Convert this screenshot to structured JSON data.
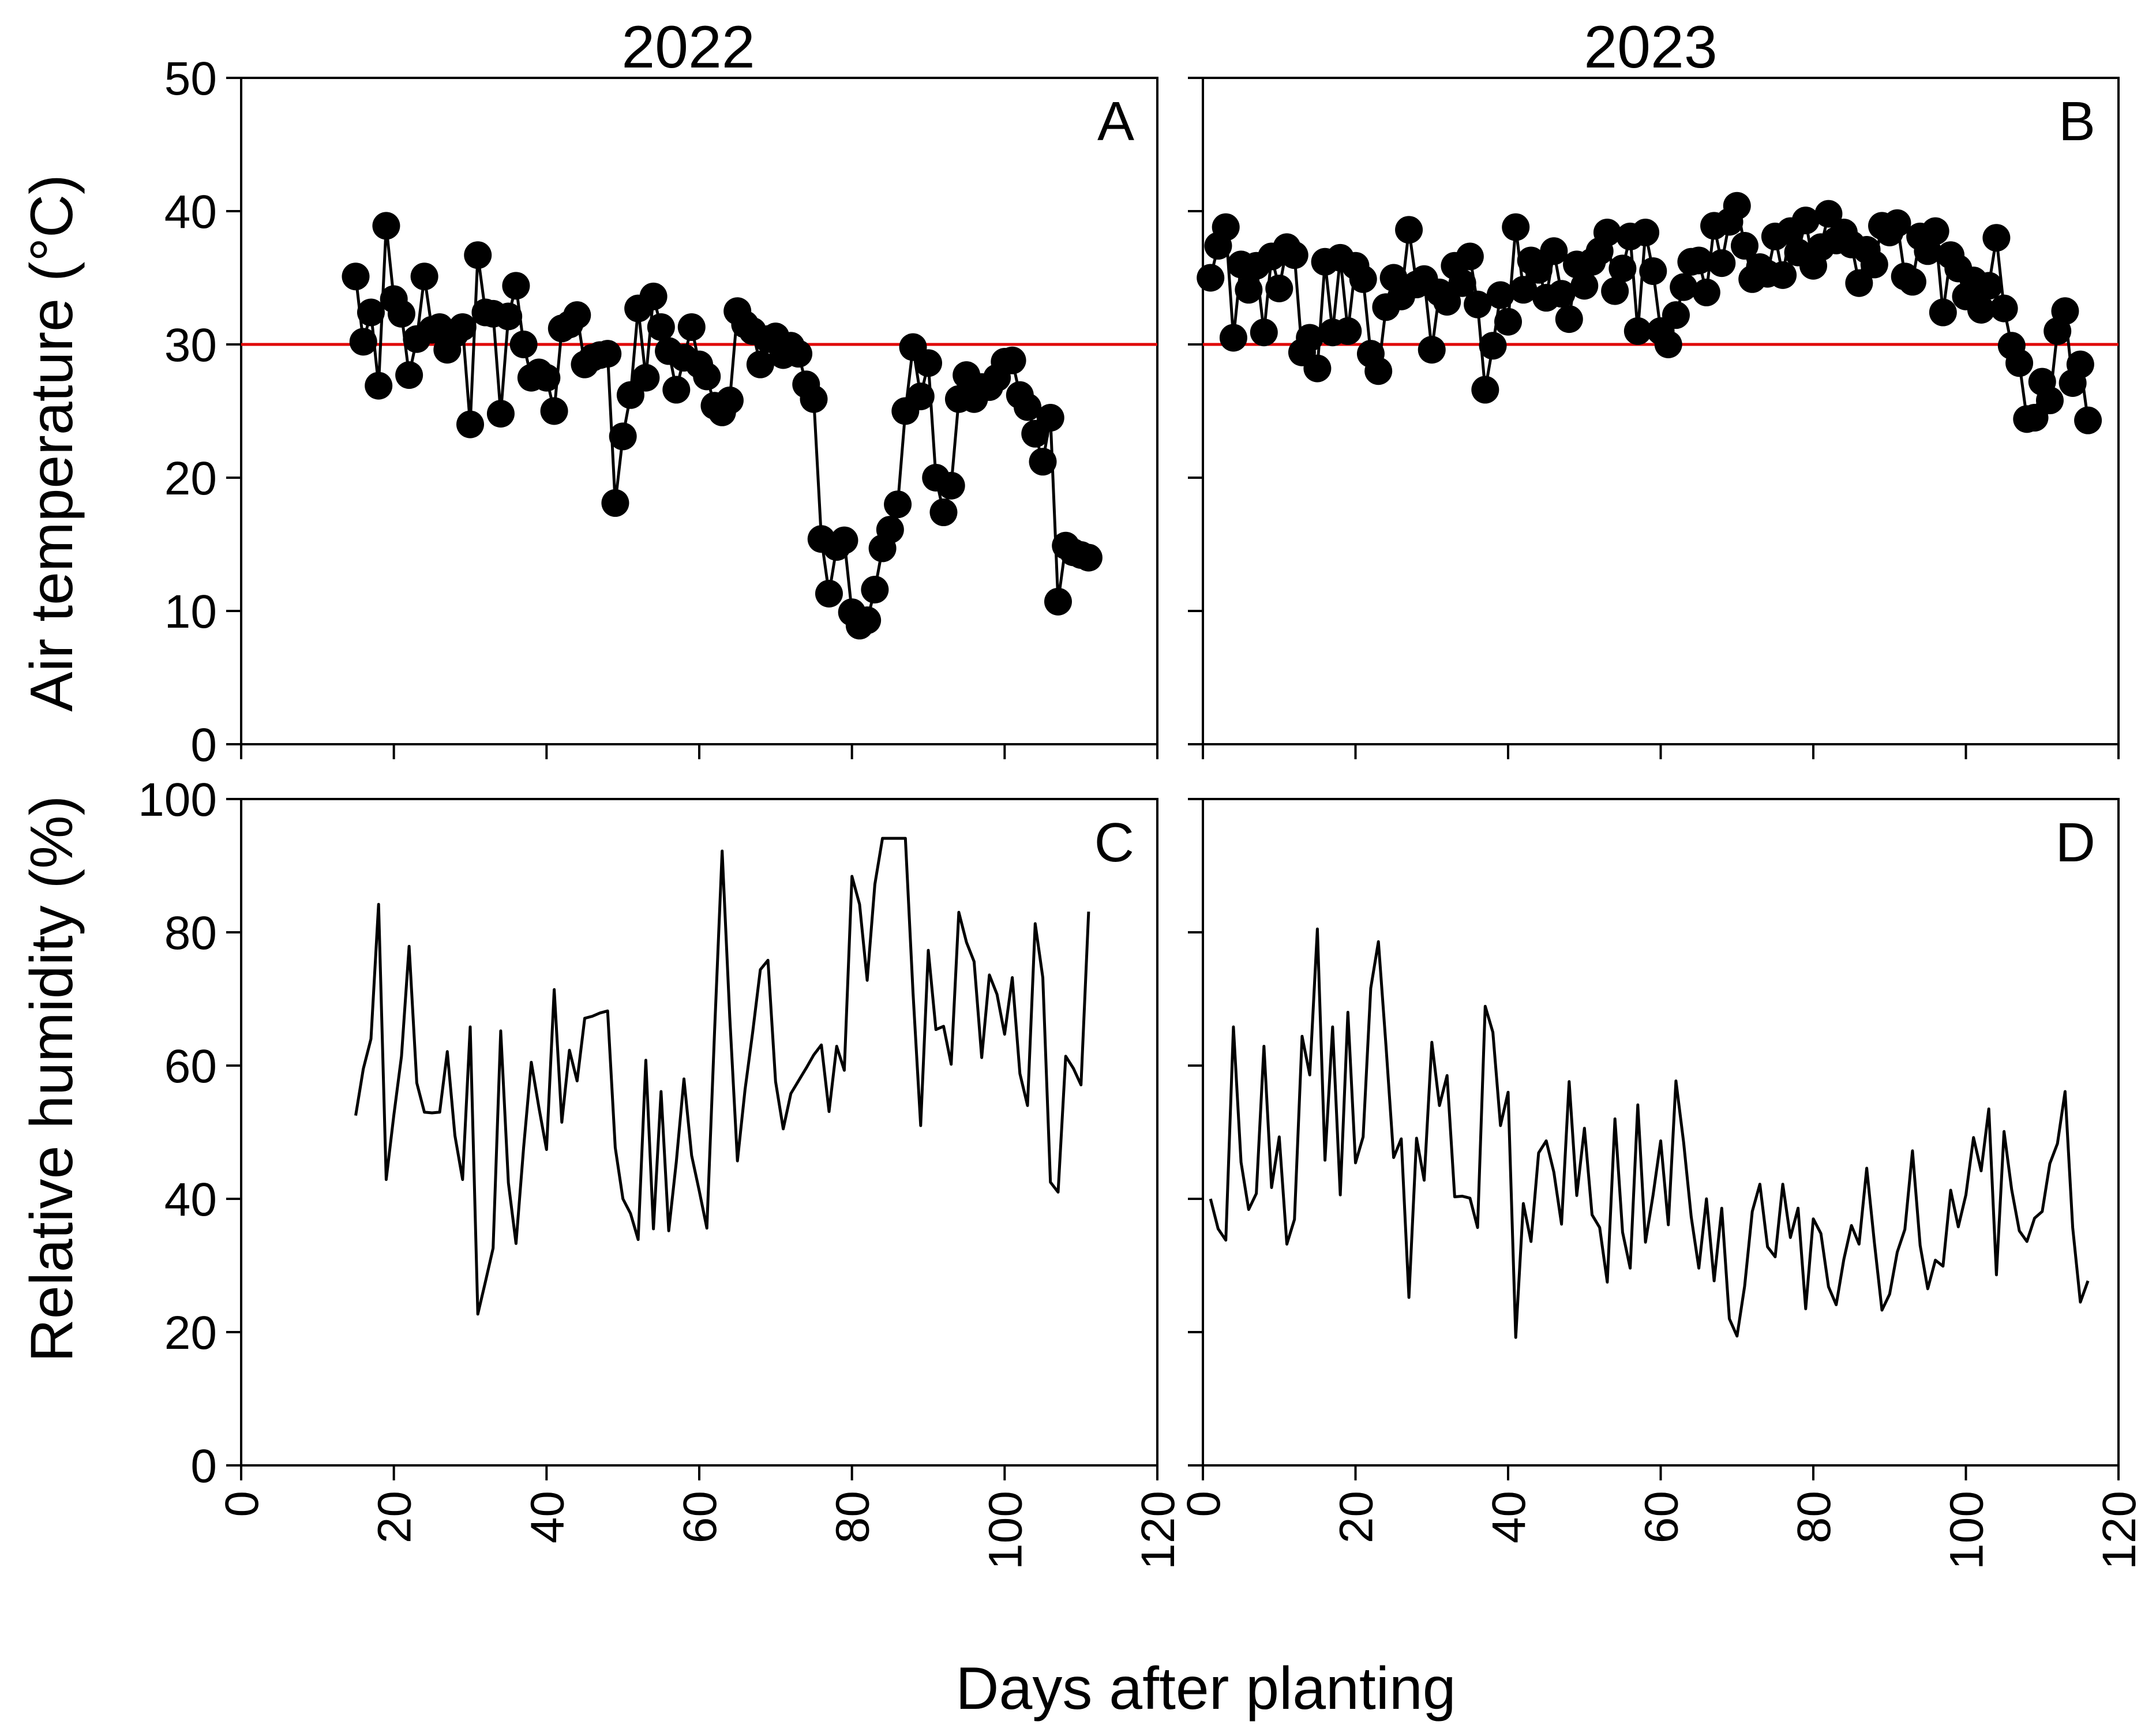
{
  "figure": {
    "xlabel": "Days after planting",
    "col_titles": [
      "2022",
      "2023"
    ],
    "ylabel_top": "Air temperature (°C)",
    "ylabel_bottom": "Relative humidity (%)"
  },
  "chart_data": [
    {
      "id": "A",
      "type": "line",
      "panel_label": "A",
      "markers": true,
      "title": "2022",
      "ylabel": "Air temperature (°C)",
      "xlim": [
        0,
        120
      ],
      "ylim": [
        0,
        50
      ],
      "xticks": [
        0,
        20,
        40,
        60,
        80,
        100,
        120
      ],
      "yticks": [
        0,
        10,
        20,
        30,
        40,
        50
      ],
      "threshold": 30,
      "threshold_color": "#e00000",
      "x": [
        15,
        16,
        17,
        18,
        19,
        20,
        21,
        22,
        23,
        24,
        25,
        26,
        27,
        28,
        29,
        30,
        31,
        32,
        33,
        34,
        35,
        36,
        37,
        38,
        39,
        40,
        41,
        42,
        43,
        44,
        45,
        46,
        47,
        48,
        49,
        50,
        51,
        52,
        53,
        54,
        55,
        56,
        57,
        58,
        59,
        60,
        61,
        62,
        63,
        64,
        65,
        66,
        67,
        68,
        69,
        70,
        71,
        72,
        73,
        74,
        75,
        76,
        77,
        78,
        79,
        80,
        81,
        82,
        83,
        84,
        85,
        86,
        87,
        88,
        89,
        90,
        91,
        92,
        93,
        94,
        95,
        96,
        97,
        98,
        99,
        100,
        101,
        102,
        103,
        104,
        105,
        106,
        107,
        108,
        109,
        110,
        111
      ],
      "y": [
        35.1,
        30.2,
        32.4,
        26.9,
        38.9,
        33.4,
        32.3,
        27.7,
        30.4,
        35.1,
        31.1,
        31.3,
        29.6,
        30.8,
        31.3,
        24.0,
        36.7,
        32.4,
        32.3,
        24.8,
        32.1,
        34.4,
        30.0,
        27.5,
        27.9,
        27.5,
        25.0,
        31.2,
        31.5,
        32.2,
        28.5,
        29.0,
        29.2,
        29.3,
        18.1,
        23.1,
        26.2,
        32.7,
        27.5,
        33.6,
        31.3,
        29.5,
        26.6,
        29.0,
        31.3,
        28.5,
        27.6,
        25.4,
        24.9,
        25.8,
        32.5,
        31.5,
        31.0,
        28.5,
        30.4,
        30.6,
        29.2,
        29.9,
        29.3,
        27.0,
        25.9,
        15.4,
        11.3,
        14.8,
        15.3,
        9.9,
        8.9,
        9.3,
        11.6,
        14.7,
        16.1,
        18.0,
        25.0,
        29.8,
        26.1,
        28.6,
        20.0,
        17.4,
        19.4,
        25.9,
        27.7,
        25.9,
        26.8,
        26.8,
        27.5,
        28.7,
        28.8,
        26.2,
        25.3,
        23.3,
        21.2,
        24.5,
        10.7,
        14.9,
        14.4,
        14.2,
        14.0
      ]
    },
    {
      "id": "B",
      "type": "line",
      "panel_label": "B",
      "markers": true,
      "title": "2023",
      "ylabel": "Air temperature (°C)",
      "xlim": [
        0,
        120
      ],
      "ylim": [
        0,
        50
      ],
      "xticks": [
        0,
        20,
        40,
        60,
        80,
        100,
        120
      ],
      "yticks": [
        0,
        10,
        20,
        30,
        40,
        50
      ],
      "threshold": 30,
      "threshold_color": "#e00000",
      "x": [
        1,
        2,
        3,
        4,
        5,
        6,
        7,
        8,
        9,
        10,
        11,
        12,
        13,
        14,
        15,
        16,
        17,
        18,
        19,
        20,
        21,
        22,
        23,
        24,
        25,
        26,
        27,
        28,
        29,
        30,
        31,
        32,
        33,
        34,
        35,
        36,
        37,
        38,
        39,
        40,
        41,
        42,
        43,
        44,
        45,
        46,
        47,
        48,
        49,
        50,
        51,
        52,
        53,
        54,
        55,
        56,
        57,
        58,
        59,
        60,
        61,
        62,
        63,
        64,
        65,
        66,
        67,
        68,
        69,
        70,
        71,
        72,
        73,
        74,
        75,
        76,
        77,
        78,
        79,
        80,
        81,
        82,
        83,
        84,
        85,
        86,
        87,
        88,
        89,
        90,
        91,
        92,
        93,
        94,
        95,
        96,
        97,
        98,
        99,
        100,
        101,
        102,
        103,
        104,
        105,
        106,
        107,
        108,
        109,
        110,
        111,
        112,
        113,
        114,
        115,
        116
      ],
      "y": [
        35.0,
        37.4,
        38.8,
        30.5,
        36.0,
        34.1,
        35.9,
        30.9,
        36.6,
        34.2,
        37.3,
        36.7,
        29.4,
        30.5,
        28.2,
        36.2,
        30.9,
        36.5,
        31.0,
        35.9,
        34.9,
        29.3,
        28.0,
        32.8,
        35.0,
        33.6,
        38.6,
        34.5,
        34.9,
        29.6,
        33.9,
        33.2,
        35.9,
        34.6,
        36.6,
        33.0,
        26.6,
        29.9,
        33.7,
        31.7,
        38.8,
        34.1,
        36.3,
        35.6,
        33.5,
        37.0,
        33.8,
        31.9,
        36.0,
        34.4,
        36.2,
        37.0,
        38.4,
        34.0,
        35.7,
        38.1,
        31.0,
        38.4,
        35.5,
        31.0,
        30.0,
        32.2,
        34.3,
        36.2,
        36.3,
        33.9,
        38.9,
        36.1,
        39.2,
        40.4,
        37.4,
        34.9,
        35.8,
        35.3,
        38.1,
        35.2,
        38.5,
        36.9,
        39.3,
        35.9,
        37.3,
        39.8,
        37.8,
        38.4,
        37.5,
        34.6,
        37.1,
        36.0,
        38.9,
        38.4,
        39.1,
        35.1,
        34.7,
        38.1,
        37.0,
        38.5,
        32.4,
        36.7,
        35.7,
        33.6,
        34.8,
        32.6,
        34.4,
        38.0,
        32.7,
        29.9,
        28.6,
        24.4,
        24.5,
        27.2,
        25.8,
        31.0,
        32.5,
        27.1,
        28.5,
        24.3
      ]
    },
    {
      "id": "C",
      "type": "line",
      "panel_label": "C",
      "markers": false,
      "ylabel": "Relative humidity (%)",
      "xlabel": "Days after planting",
      "xlim": [
        0,
        120
      ],
      "ylim": [
        0,
        100
      ],
      "xticks": [
        0,
        20,
        40,
        60,
        80,
        100,
        120
      ],
      "yticks": [
        0,
        20,
        40,
        60,
        80,
        100
      ],
      "x": [
        15,
        16,
        17,
        18,
        19,
        20,
        21,
        22,
        23,
        24,
        25,
        26,
        27,
        28,
        29,
        30,
        31,
        32,
        33,
        34,
        35,
        36,
        37,
        38,
        39,
        40,
        41,
        42,
        43,
        44,
        45,
        46,
        47,
        48,
        49,
        50,
        51,
        52,
        53,
        54,
        55,
        56,
        57,
        58,
        59,
        60,
        61,
        62,
        63,
        64,
        65,
        66,
        67,
        68,
        69,
        70,
        71,
        72,
        73,
        74,
        75,
        76,
        77,
        78,
        79,
        80,
        81,
        82,
        83,
        84,
        85,
        86,
        87,
        88,
        89,
        90,
        91,
        92,
        93,
        94,
        95,
        96,
        97,
        98,
        99,
        100,
        101,
        102,
        103,
        104,
        105,
        106,
        107,
        108,
        109,
        110,
        111
      ],
      "y": [
        52.5,
        59.5,
        64.0,
        84.2,
        42.9,
        52.6,
        61.4,
        77.9,
        57.4,
        53.0,
        52.9,
        53.0,
        62.1,
        49.5,
        42.9,
        65.8,
        22.7,
        27.6,
        32.6,
        65.2,
        42.4,
        33.3,
        47.7,
        60.5,
        53.7,
        47.4,
        71.4,
        51.5,
        62.3,
        57.7,
        67.1,
        67.4,
        67.9,
        68.2,
        47.7,
        40.0,
        37.8,
        33.9,
        60.8,
        35.5,
        56.1,
        35.2,
        45.6,
        58.0,
        46.5,
        41.2,
        35.6,
        65.0,
        92.2,
        67.3,
        45.7,
        56.4,
        65.0,
        74.4,
        75.8,
        57.6,
        50.5,
        55.8,
        57.7,
        59.6,
        61.6,
        63.1,
        53.1,
        62.9,
        59.3,
        88.4,
        84.2,
        72.8,
        87.2,
        94.1,
        94.1,
        94.1,
        94.1,
        71.0,
        51.0,
        77.3,
        65.4,
        65.9,
        60.2,
        83.0,
        78.5,
        75.6,
        61.2,
        73.6,
        70.7,
        64.7,
        73.2,
        58.8,
        54.0,
        81.3,
        73.2,
        42.5,
        41.0,
        61.4,
        59.6,
        57.1,
        83.1
      ]
    },
    {
      "id": "D",
      "type": "line",
      "panel_label": "D",
      "markers": false,
      "ylabel": "Relative humidity (%)",
      "xlabel": "Days after planting",
      "xlim": [
        0,
        120
      ],
      "ylim": [
        0,
        100
      ],
      "xticks": [
        0,
        20,
        40,
        60,
        80,
        100,
        120
      ],
      "yticks": [
        0,
        20,
        40,
        60,
        80,
        100
      ],
      "x": [
        1,
        2,
        3,
        4,
        5,
        6,
        7,
        8,
        9,
        10,
        11,
        12,
        13,
        14,
        15,
        16,
        17,
        18,
        19,
        20,
        21,
        22,
        23,
        24,
        25,
        26,
        27,
        28,
        29,
        30,
        31,
        32,
        33,
        34,
        35,
        36,
        37,
        38,
        39,
        40,
        41,
        42,
        43,
        44,
        45,
        46,
        47,
        48,
        49,
        50,
        51,
        52,
        53,
        54,
        55,
        56,
        57,
        58,
        59,
        60,
        61,
        62,
        63,
        64,
        65,
        66,
        67,
        68,
        69,
        70,
        71,
        72,
        73,
        74,
        75,
        76,
        77,
        78,
        79,
        80,
        81,
        82,
        83,
        84,
        85,
        86,
        87,
        88,
        89,
        90,
        91,
        92,
        93,
        94,
        95,
        96,
        97,
        98,
        99,
        100,
        101,
        102,
        103,
        104,
        105,
        106,
        107,
        108,
        109,
        110,
        111,
        112,
        113,
        114,
        115,
        116
      ],
      "y": [
        40.0,
        35.5,
        33.8,
        65.8,
        45.5,
        38.4,
        40.8,
        62.9,
        41.7,
        49.3,
        33.2,
        36.9,
        64.4,
        58.6,
        80.5,
        45.8,
        65.8,
        40.6,
        68.0,
        45.4,
        49.3,
        71.6,
        78.6,
        62.9,
        46.2,
        49.0,
        25.2,
        49.1,
        42.8,
        63.5,
        54.0,
        58.5,
        40.3,
        40.4,
        40.1,
        35.7,
        68.9,
        65.0,
        51.0,
        56.0,
        19.2,
        39.3,
        33.6,
        46.9,
        48.7,
        44.0,
        36.2,
        57.6,
        40.5,
        50.6,
        37.6,
        35.7,
        27.5,
        52.0,
        35.0,
        29.6,
        54.1,
        33.5,
        40.6,
        48.7,
        36.1,
        57.7,
        48.5,
        37.3,
        29.6,
        40.0,
        27.7,
        38.6,
        22.0,
        19.4,
        26.9,
        38.1,
        42.2,
        32.8,
        31.3,
        42.2,
        34.2,
        38.6,
        23.5,
        37.0,
        34.8,
        26.8,
        24.1,
        30.9,
        36.0,
        33.2,
        44.6,
        33.5,
        23.3,
        25.7,
        32.0,
        35.4,
        47.2,
        33.0,
        26.5,
        30.8,
        29.9,
        41.3,
        35.8,
        40.6,
        49.2,
        44.2,
        53.5,
        28.6,
        50.1,
        41.4,
        35.2,
        33.6,
        37.1,
        38.1,
        45.3,
        48.3,
        56.1,
        35.7,
        24.5,
        27.7
      ]
    }
  ]
}
